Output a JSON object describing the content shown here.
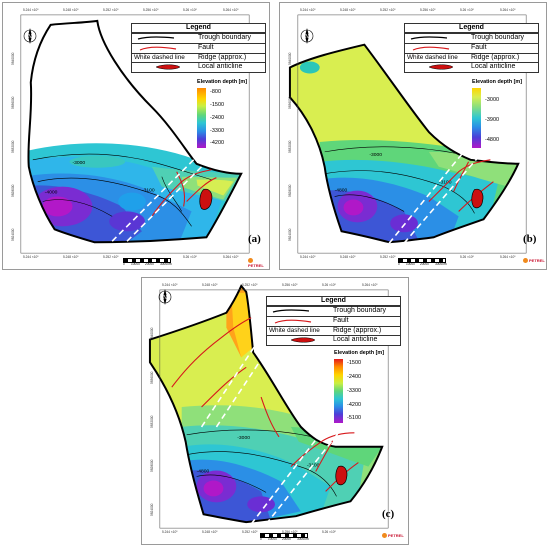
{
  "legend": {
    "title": "Legend",
    "rows": [
      {
        "symbol": "black-line",
        "label": "Trough boundary"
      },
      {
        "symbol": "red-line",
        "label": "Fault"
      },
      {
        "symbol": "text",
        "symbol_text": "White dashed line",
        "label": "Ridge (approx.)"
      },
      {
        "symbol": "red-polygon",
        "label": "Local anticline"
      }
    ]
  },
  "elevation_title": "Elevation depth [m]",
  "logo_text": "PETREL",
  "colors": {
    "trough_boundary": "#000000",
    "fault": "#d7191c",
    "anticline": "#cc1010",
    "ridge": "#ffffff"
  },
  "panels": [
    {
      "id": "a",
      "label": "(a)",
      "ticks": [
        "-800",
        "-1500",
        "-2400",
        "-3300",
        "-4200"
      ],
      "contours": [
        "-3000",
        "-3100",
        "-4000"
      ],
      "x_ticks": [
        "5.244 ×10⁵",
        "5.248 ×10⁵",
        "5.252 ×10⁵",
        "5.256 ×10⁵",
        "5.26 ×10⁵",
        "5.264 ×10⁵"
      ],
      "y_ticks": [
        "5840000",
        "5836000",
        "5832000",
        "5828000",
        "5824000"
      ],
      "scale_labels": [
        "0",
        "10000",
        "20000",
        "30000m"
      ]
    },
    {
      "id": "b",
      "label": "(b)",
      "ticks": [
        "-3000",
        "-3900",
        "-4800"
      ],
      "contours": [
        "-3000",
        "-3100",
        "-4800"
      ],
      "x_ticks": [
        "5.244 ×10⁵",
        "5.248 ×10⁵",
        "5.252 ×10⁵",
        "5.256 ×10⁵",
        "5.26 ×10⁵",
        "5.264 ×10⁵"
      ],
      "y_ticks": [
        "5840000",
        "5836000",
        "5832000",
        "5828000",
        "5824000"
      ],
      "scale_labels": [
        "0",
        "10000",
        "20000",
        "30000m"
      ]
    },
    {
      "id": "c",
      "label": "(c)",
      "ticks": [
        "-1500",
        "-2400",
        "-3300",
        "-4200",
        "-5100"
      ],
      "contours": [
        "-3000",
        "-3100",
        "-4800"
      ],
      "x_ticks": [
        "5.244 ×10⁵",
        "5.248 ×10⁵",
        "5.252 ×10⁵",
        "5.256 ×10⁵",
        "5.26 ×10⁵",
        "5.264 ×10⁵"
      ],
      "y_ticks": [
        "5840000",
        "5836000",
        "5832000",
        "5828000",
        "5824000"
      ],
      "scale_labels": [
        "0",
        "10000",
        "20000",
        "30000m"
      ]
    }
  ]
}
